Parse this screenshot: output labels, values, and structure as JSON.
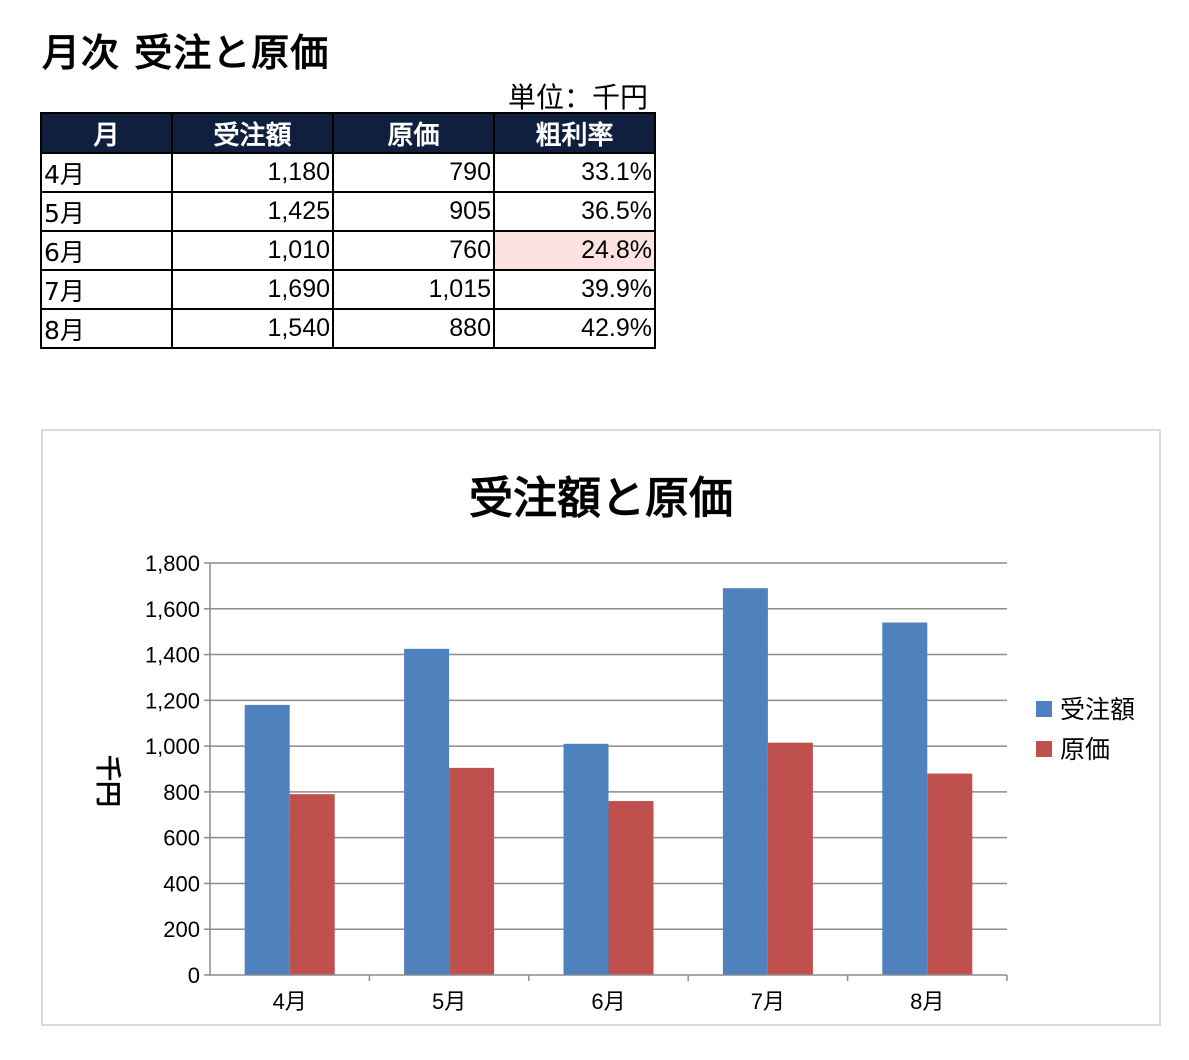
{
  "page": {
    "title": "月次 受注と原価",
    "unit": "単位：千円"
  },
  "table": {
    "headers": [
      "月",
      "受注額",
      "原価",
      "粗利率"
    ],
    "rows": [
      {
        "month": "4月",
        "orders": "1,180",
        "cost": "790",
        "margin": "33.1%",
        "highlight": false
      },
      {
        "month": "5月",
        "orders": "1,425",
        "cost": "905",
        "margin": "36.5%",
        "highlight": false
      },
      {
        "month": "6月",
        "orders": "1,010",
        "cost": "760",
        "margin": "24.8%",
        "highlight": true
      },
      {
        "month": "7月",
        "orders": "1,690",
        "cost": "1,015",
        "margin": "39.9%",
        "highlight": false
      },
      {
        "month": "8月",
        "orders": "1,540",
        "cost": "880",
        "margin": "42.9%",
        "highlight": false
      }
    ],
    "highlight_color": "#fde2e2",
    "header_bg": "#0f1f3d"
  },
  "chart_data": {
    "type": "bar",
    "title": "受注額と原価",
    "ylabel": "千円",
    "xlabel": "",
    "categories": [
      "4月",
      "5月",
      "6月",
      "7月",
      "8月"
    ],
    "series": [
      {
        "name": "受注額",
        "values": [
          1180,
          1425,
          1010,
          1690,
          1540
        ],
        "color": "#4f81bd"
      },
      {
        "name": "原価",
        "values": [
          790,
          905,
          760,
          1015,
          880
        ],
        "color": "#c0504d"
      }
    ],
    "ylim": [
      0,
      1800
    ],
    "yticks": [
      "0",
      "200",
      "400",
      "600",
      "800",
      "1,000",
      "1,200",
      "1,400",
      "1,600",
      "1,800"
    ],
    "grid": true,
    "legend_position": "right"
  }
}
